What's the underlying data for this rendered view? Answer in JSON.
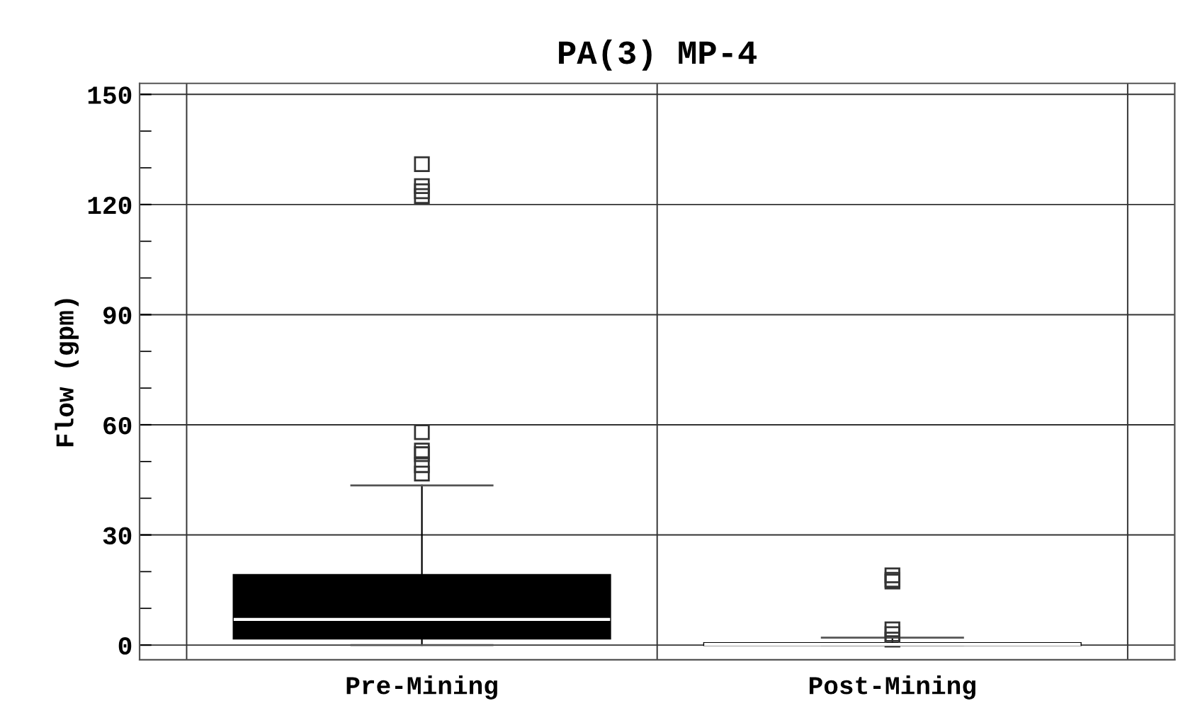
{
  "chart_data": {
    "type": "box",
    "title": "PA(3) MP-4",
    "ylabel": "Flow (gpm)",
    "categories": [
      "Pre-Mining",
      "Post-Mining"
    ],
    "boxes": [
      {
        "low": 0,
        "q1": 1.8,
        "median": 7,
        "q3": 19.1,
        "high": 43.5,
        "outliers": [
          46.7,
          49,
          52,
          53,
          58,
          122.3,
          123.6,
          125,
          131
        ]
      },
      {
        "low": 0,
        "q1": 0,
        "median": 0.2,
        "q3": 0.5,
        "high": 2,
        "outliers": [
          1.5,
          3,
          4.3,
          17.3,
          17.8,
          19
        ]
      }
    ],
    "color": "#000000",
    "ylim": [
      -4,
      153
    ],
    "yticks": [
      0,
      30,
      60,
      90,
      120,
      150
    ],
    "grid": true,
    "marker": "square"
  }
}
